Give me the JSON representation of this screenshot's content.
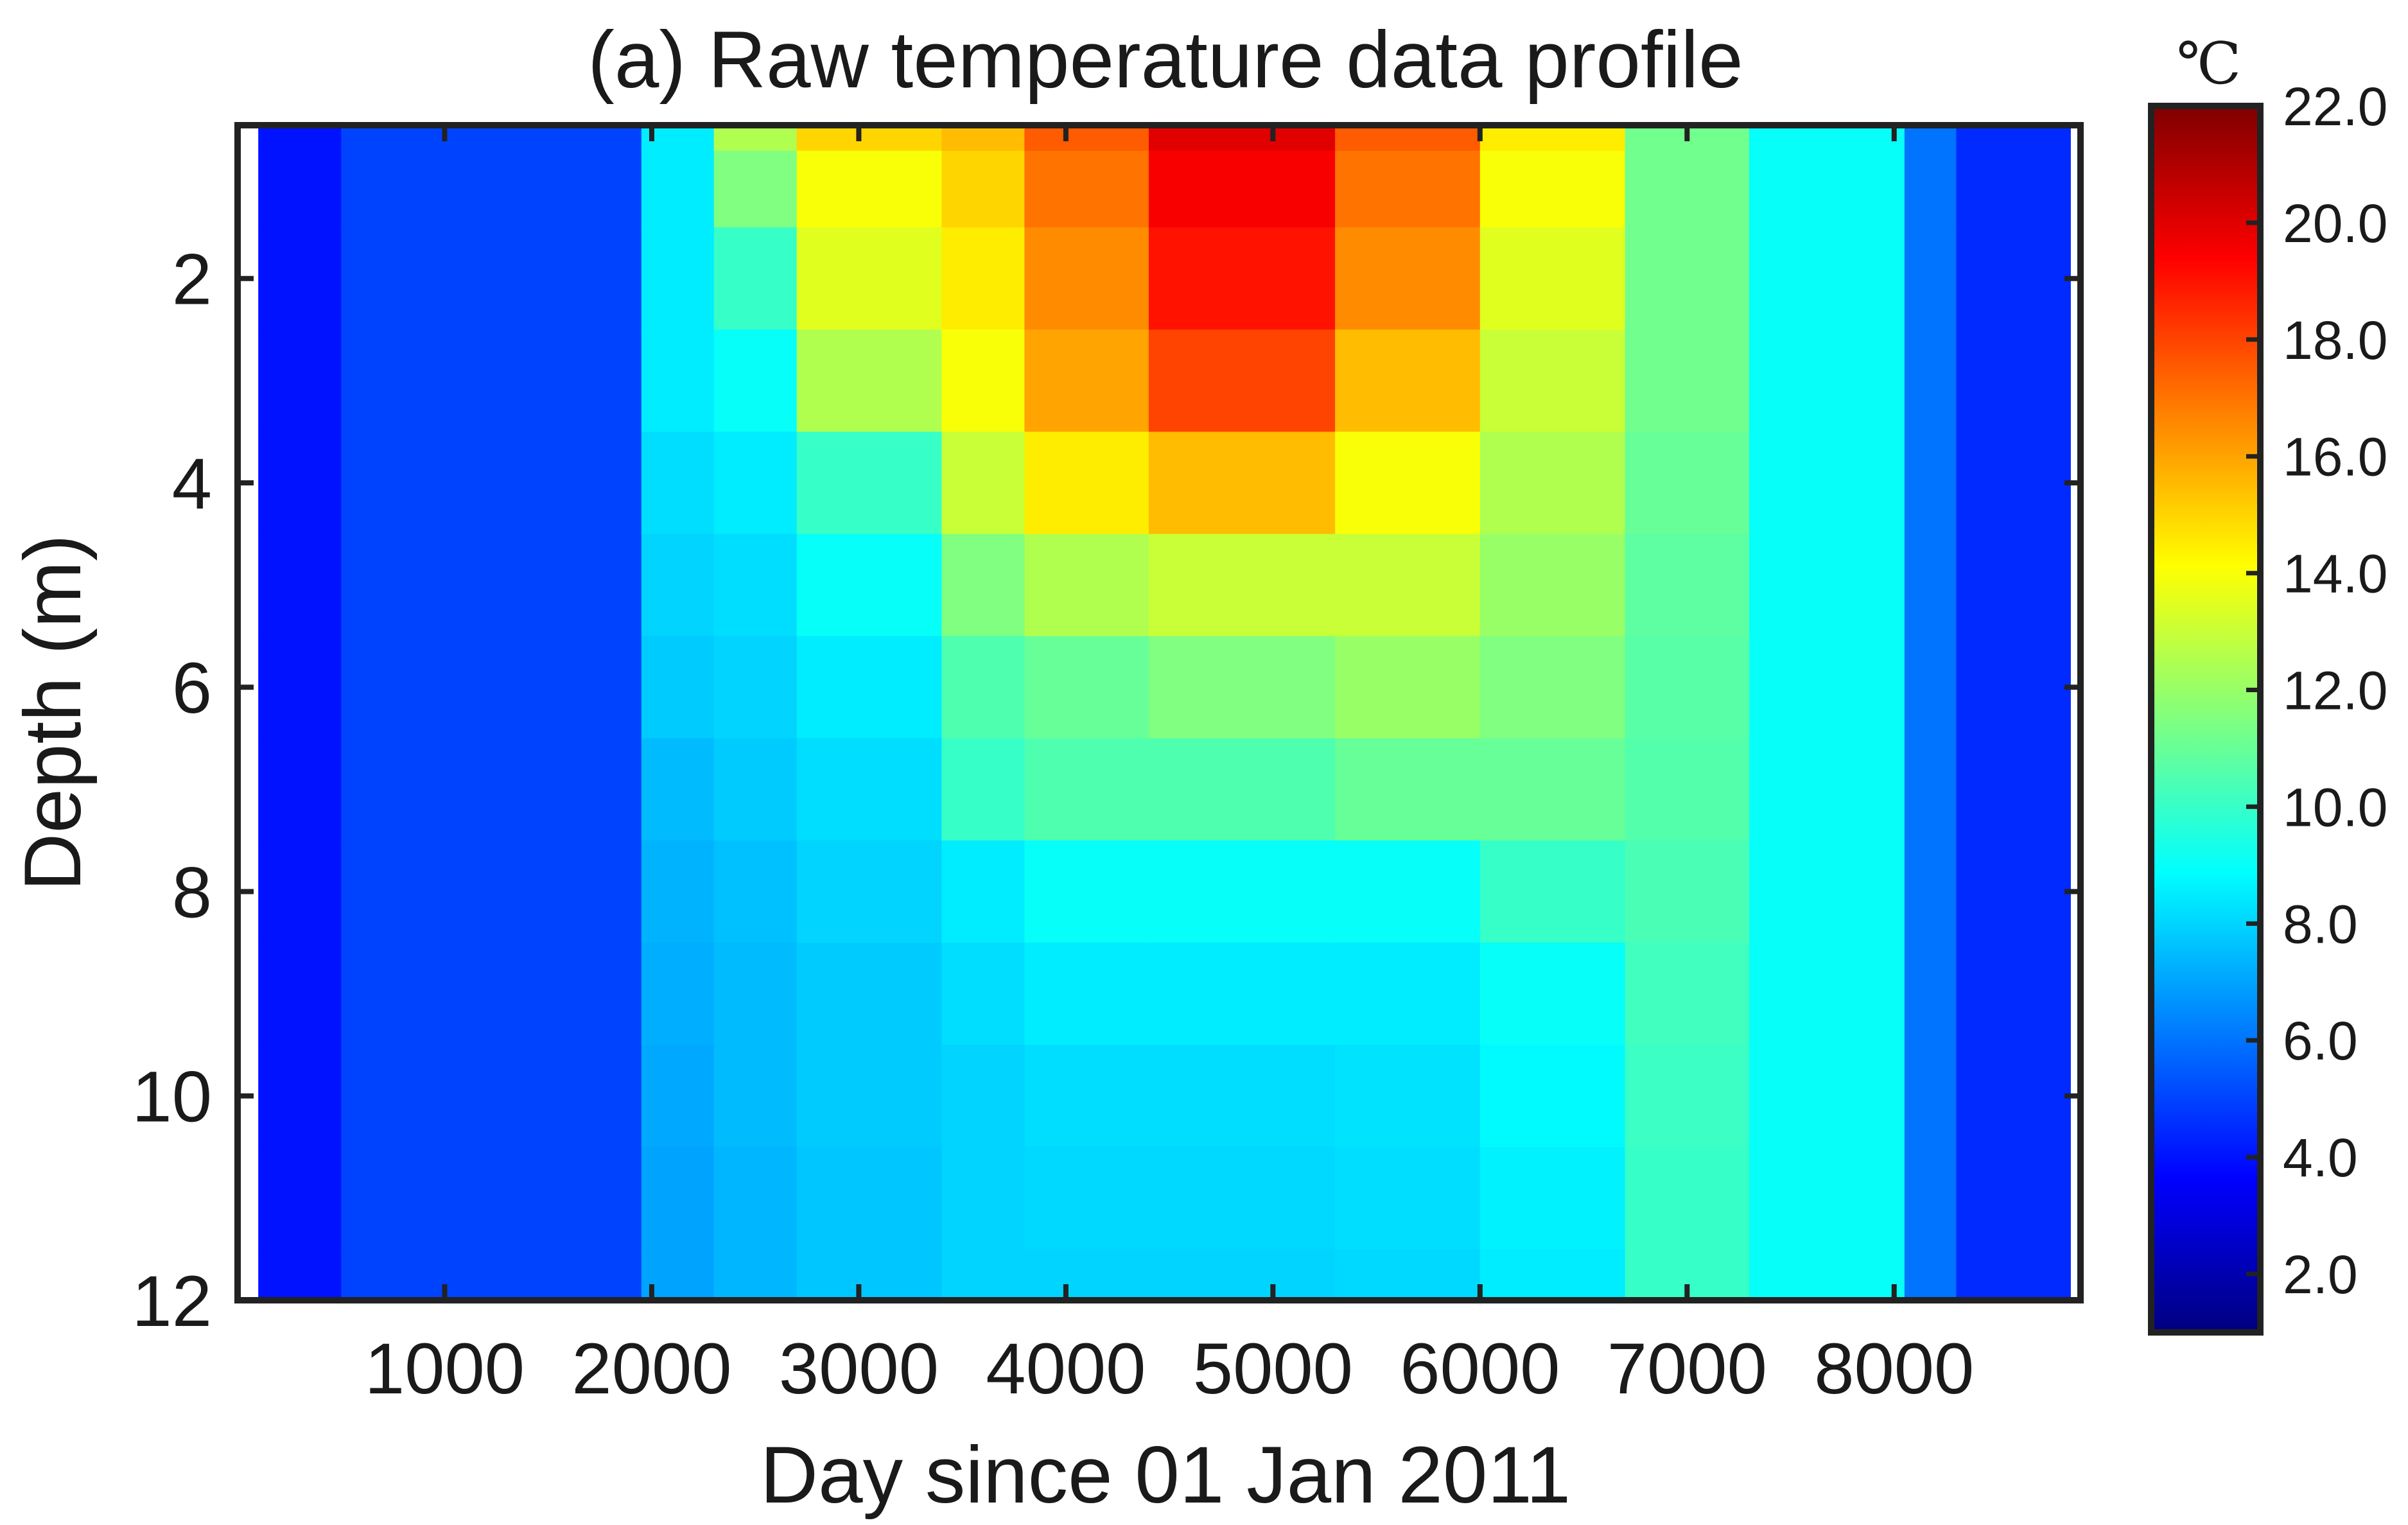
{
  "chart_data": {
    "type": "heatmap",
    "title": "(a) Raw temperature data profile",
    "xlabel": "Day since 01 Jan 2011",
    "ylabel": "Depth (m)",
    "xlim": [
      0,
      8900
    ],
    "ylim": [
      12,
      0.5
    ],
    "xticks": [
      1000,
      2000,
      3000,
      4000,
      5000,
      6000,
      7000,
      8000
    ],
    "yticks": [
      2,
      4,
      6,
      8,
      10,
      12
    ],
    "colorbar": {
      "unit": "℃",
      "range": [
        1.0,
        22.0
      ],
      "ticks": [
        "2.0",
        "4.0",
        "6.0",
        "8.0",
        "10.0",
        "12.0",
        "14.0",
        "16.0",
        "18.0",
        "20.0",
        "22.0"
      ],
      "colormap": "jet"
    },
    "depth_levels": [
      0.5,
      1,
      2,
      3,
      4,
      5,
      6,
      7,
      8,
      9,
      10,
      11,
      12
    ],
    "columns": [
      {
        "x0": 100,
        "x1": 500,
        "temps": [
          4,
          4,
          4,
          4,
          4,
          4,
          4,
          4,
          4,
          4,
          4,
          4,
          4
        ]
      },
      {
        "x0": 500,
        "x1": 1950,
        "temps": [
          5,
          5,
          5,
          5,
          5,
          5,
          5,
          5,
          5,
          5,
          5,
          5,
          5
        ]
      },
      {
        "x0": 1950,
        "x1": 2300,
        "temps": [
          8.5,
          8.5,
          8.5,
          8.5,
          8.2,
          8.0,
          7.8,
          7.5,
          7.3,
          7.2,
          7.1,
          7.0,
          7.0
        ]
      },
      {
        "x0": 2300,
        "x1": 2700,
        "temps": [
          12.5,
          11.5,
          10,
          9,
          8.5,
          8.2,
          8,
          7.8,
          7.6,
          7.5,
          7.5,
          7.4,
          7.4
        ]
      },
      {
        "x0": 2700,
        "x1": 3400,
        "temps": [
          15,
          14,
          13.5,
          12.5,
          10,
          9,
          8.5,
          8.2,
          8,
          7.8,
          7.8,
          7.7,
          7.7
        ]
      },
      {
        "x0": 3400,
        "x1": 3800,
        "temps": [
          15.5,
          15,
          14.5,
          14,
          13,
          11.5,
          10.5,
          10,
          8.5,
          8.2,
          8,
          8,
          8
        ]
      },
      {
        "x0": 3800,
        "x1": 4400,
        "temps": [
          17.5,
          17,
          16.5,
          16,
          14.5,
          12.5,
          11,
          10.5,
          9,
          8.5,
          8.2,
          8.1,
          8
        ]
      },
      {
        "x0": 4400,
        "x1": 5300,
        "temps": [
          20,
          19.5,
          19,
          18,
          15.5,
          13,
          11.5,
          10.5,
          9,
          8.5,
          8.2,
          8.1,
          8
        ]
      },
      {
        "x0": 5300,
        "x1": 6000,
        "temps": [
          17.5,
          17,
          16.5,
          15.5,
          14,
          13,
          12,
          11,
          9,
          8.5,
          8.3,
          8.2,
          8.1
        ]
      },
      {
        "x0": 6000,
        "x1": 6700,
        "temps": [
          14.5,
          14,
          13.5,
          13,
          12.5,
          12,
          11.5,
          11,
          10,
          9,
          8.8,
          8.6,
          8.5
        ]
      },
      {
        "x0": 6700,
        "x1": 7300,
        "temps": [
          11.2,
          11.2,
          11.2,
          11.2,
          11,
          10.8,
          10.7,
          10.6,
          10.4,
          10.2,
          10.1,
          10,
          10
        ]
      },
      {
        "x0": 7300,
        "x1": 8050,
        "temps": [
          9,
          9,
          9,
          9,
          9,
          9,
          9,
          9,
          9,
          9,
          9,
          9,
          9
        ]
      },
      {
        "x0": 8050,
        "x1": 8300,
        "temps": [
          6,
          6,
          6,
          6,
          6,
          6,
          6,
          6,
          6,
          6,
          6,
          6,
          6
        ]
      },
      {
        "x0": 8300,
        "x1": 8850,
        "temps": [
          4.5,
          4.5,
          4.5,
          4.5,
          4.5,
          4.5,
          4.5,
          4.5,
          4.5,
          4.5,
          4.5,
          4.5,
          4.5
        ]
      }
    ]
  }
}
